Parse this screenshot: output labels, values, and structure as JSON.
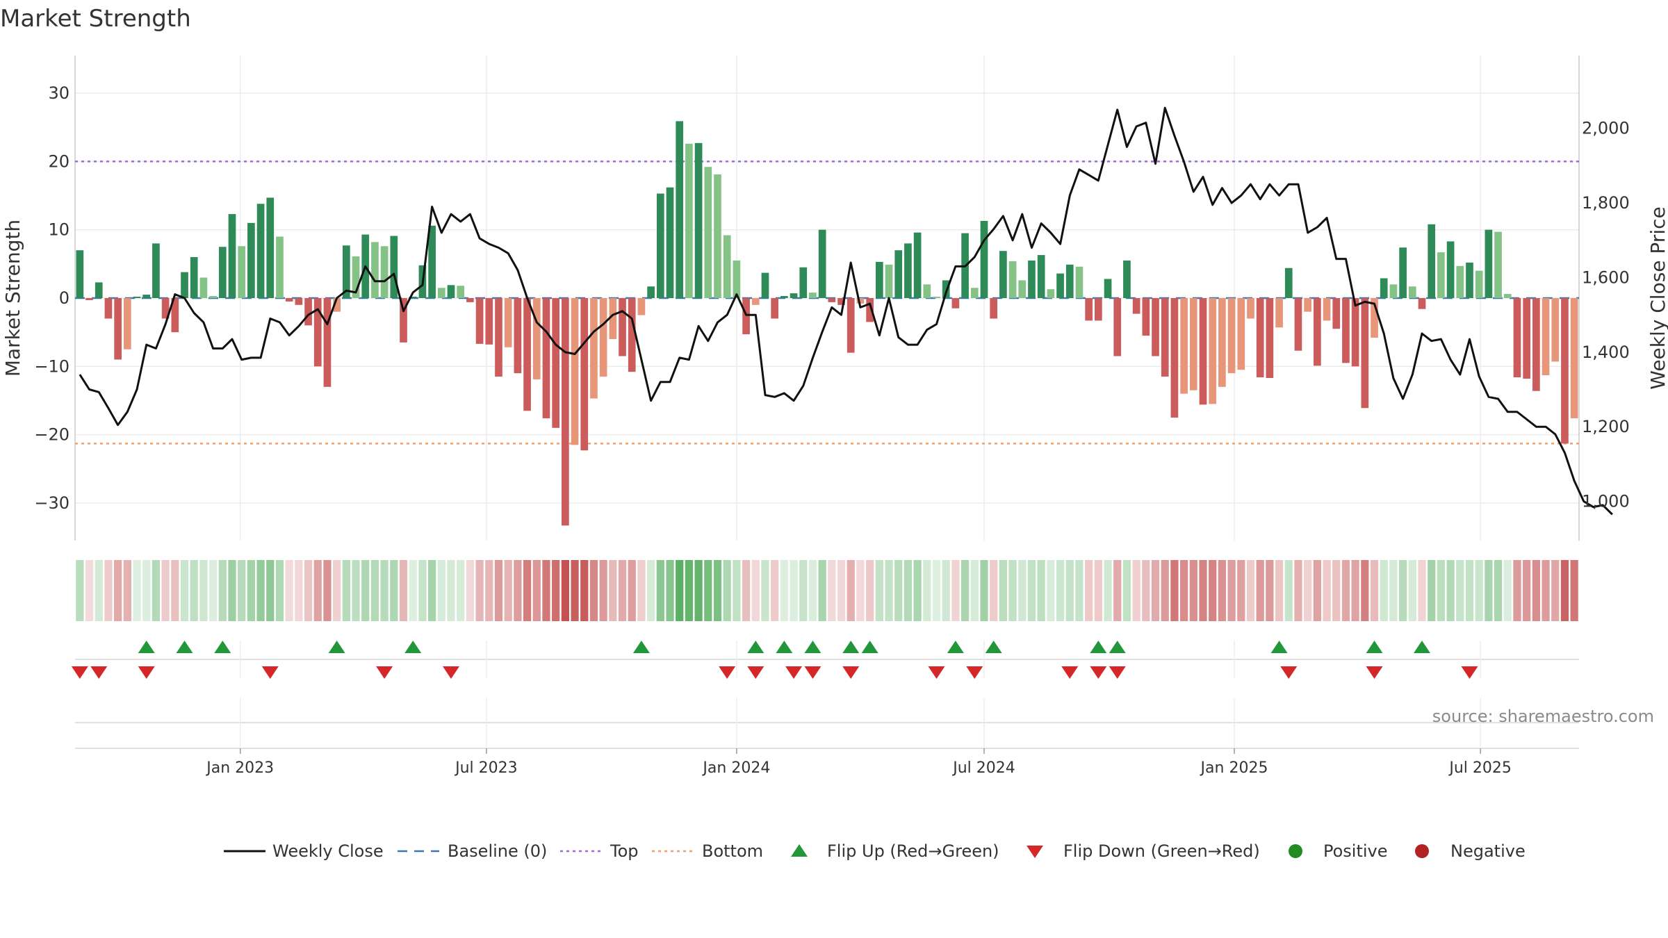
{
  "chart_data": {
    "type": "bar",
    "title": "Market Strength",
    "ylabel": "Market Strength",
    "y2label": "Weekly Close Price",
    "ylim": [
      -35.5,
      35.5
    ],
    "y2lim": [
      895,
      2195
    ],
    "y_ticks": [
      30,
      20,
      10,
      0,
      -10,
      -20,
      -30
    ],
    "y_tick_labels": [
      "30",
      "20",
      "10",
      "0",
      "−10",
      "−20",
      "−30"
    ],
    "y2_ticks": [
      2000,
      1800,
      1600,
      1400,
      1200,
      1000
    ],
    "y2_tick_labels": [
      "2,000",
      "1,800",
      "1,600",
      "1,400",
      "1,200",
      "1,000"
    ],
    "x_start": "2022-09-05",
    "x_ticks": [
      "2023-01-01",
      "2023-07-01",
      "2024-01-01",
      "2024-07-01",
      "2025-01-01",
      "2025-07-01"
    ],
    "x_tick_labels": [
      "Jan 2023",
      "Jul 2023",
      "Jan 2024",
      "Jul 2024",
      "Jan 2025",
      "Jul 2025"
    ],
    "top_level": 20,
    "bottom_level": -21.3,
    "strength": [
      7,
      -0.3,
      2.3,
      -3,
      -9,
      -7.5,
      0.2,
      0.5,
      8,
      -3,
      -5,
      3.8,
      6,
      3,
      0.3,
      7.5,
      12.3,
      7.6,
      11,
      13.8,
      14.7,
      9,
      -0.5,
      -1,
      -4,
      -10,
      -13,
      -2,
      7.7,
      6.1,
      9.3,
      8.2,
      7.6,
      9.1,
      -6.5,
      0.2,
      4.8,
      10.6,
      1.5,
      1.9,
      1.8,
      -0.6,
      -6.7,
      -6.8,
      -11.5,
      -7.2,
      -11,
      -16.5,
      -11.9,
      -17.6,
      -19,
      -33.3,
      -21.5,
      -22.3,
      -14.7,
      -11.5,
      -6,
      -8.5,
      -10.8,
      -2.5,
      1.7,
      15.3,
      16.2,
      25.9,
      22.6,
      22.7,
      19.2,
      18.1,
      9.2,
      5.5,
      -5.3,
      -1,
      3.7,
      -3,
      0.3,
      0.7,
      4.5,
      0.8,
      10,
      -0.6,
      -1,
      -8,
      -0.8,
      -3.5,
      5.3,
      4.9,
      7,
      8,
      9.6,
      2,
      0.2,
      2.6,
      -1.5,
      9.5,
      1.5,
      11.3,
      -3,
      6.9,
      5.4,
      2.6,
      5.5,
      6.3,
      1.3,
      3.6,
      4.9,
      4.6,
      -3.3,
      -3.3,
      2.8,
      -8.5,
      5.5,
      -2.3,
      -5.5,
      -8.5,
      -11.5,
      -17.5,
      -14,
      -13.5,
      -15.6,
      -15.5,
      -13,
      -11,
      -10.5,
      -3,
      -11.6,
      -11.7,
      -4.3,
      4.4,
      -7.7,
      -2,
      -9.9,
      -3.3,
      -4.5,
      -9.5,
      -10,
      -16.1,
      -5.8,
      2.9,
      2,
      7.4,
      1.7,
      -1.6,
      10.8,
      6.7,
      8.3,
      4.7,
      5.2,
      4,
      10,
      9.7,
      0.6,
      -11.6,
      -11.8,
      -13.6,
      -11.3,
      -9.3,
      -21.3,
      -17.6
    ],
    "close": [
      1340,
      1300,
      1293,
      1250,
      1205,
      1240,
      1300,
      1420,
      1410,
      1475,
      1555,
      1545,
      1505,
      1480,
      1410,
      1410,
      1435,
      1380,
      1385,
      1385,
      1490,
      1480,
      1445,
      1470,
      1500,
      1515,
      1475,
      1545,
      1565,
      1560,
      1630,
      1590,
      1590,
      1610,
      1510,
      1560,
      1580,
      1790,
      1720,
      1770,
      1750,
      1770,
      1705,
      1690,
      1680,
      1665,
      1620,
      1545,
      1480,
      1455,
      1420,
      1400,
      1395,
      1425,
      1455,
      1475,
      1500,
      1510,
      1490,
      1380,
      1270,
      1320,
      1320,
      1385,
      1380,
      1470,
      1430,
      1480,
      1500,
      1555,
      1500,
      1500,
      1285,
      1280,
      1290,
      1270,
      1310,
      1385,
      1455,
      1520,
      1500,
      1640,
      1520,
      1530,
      1445,
      1545,
      1440,
      1420,
      1420,
      1460,
      1475,
      1560,
      1630,
      1630,
      1655,
      1700,
      1730,
      1765,
      1700,
      1770,
      1680,
      1745,
      1720,
      1690,
      1820,
      1890,
      1875,
      1860,
      1955,
      2050,
      1950,
      2005,
      2015,
      1905,
      2055,
      1980,
      1910,
      1830,
      1870,
      1795,
      1840,
      1800,
      1820,
      1850,
      1810,
      1850,
      1820,
      1850,
      1850,
      1720,
      1735,
      1760,
      1650,
      1650,
      1525,
      1535,
      1530,
      1450,
      1330,
      1275,
      1340,
      1450,
      1430,
      1435,
      1380,
      1340,
      1435,
      1335,
      1280,
      1275,
      1240,
      1240,
      1220,
      1200,
      1200,
      1180,
      1130,
      1055,
      1000,
      985,
      990,
      965
    ],
    "flip_up": [
      7,
      11,
      15,
      27,
      35,
      59,
      71,
      74,
      77,
      81,
      83,
      92,
      96,
      107,
      109,
      126,
      136,
      141
    ],
    "flip_down": [
      0,
      2,
      7,
      20,
      32,
      39,
      68,
      71,
      75,
      77,
      81,
      90,
      94,
      104,
      107,
      109,
      127,
      136,
      146
    ],
    "colors": {
      "pos_strong": "#2e8b57",
      "pos_weak": "#85c286",
      "neg_strong": "#cc5c5c",
      "neg_weak": "#e8967a",
      "close": "#111111",
      "baseline": "#3b78b0",
      "top": "#9a6bd6",
      "bottom": "#f0a16a",
      "flip_up": "#22973a",
      "flip_down": "#d62728",
      "positive": "#228b22",
      "negative": "#b22222"
    }
  },
  "legend": [
    {
      "label": "Weekly Close",
      "marker": "line"
    },
    {
      "label": "Baseline (0)",
      "marker": "dash"
    },
    {
      "label": "Top",
      "marker": "dot-purple"
    },
    {
      "label": "Bottom",
      "marker": "dot-orange"
    },
    {
      "label": "Flip Up (Red→Green)",
      "marker": "tri-up"
    },
    {
      "label": "Flip Down (Green→Red)",
      "marker": "tri-down"
    },
    {
      "label": "Positive",
      "marker": "circle-green"
    },
    {
      "label": "Negative",
      "marker": "circle-red"
    }
  ],
  "source": "source: sharemaestro.com"
}
